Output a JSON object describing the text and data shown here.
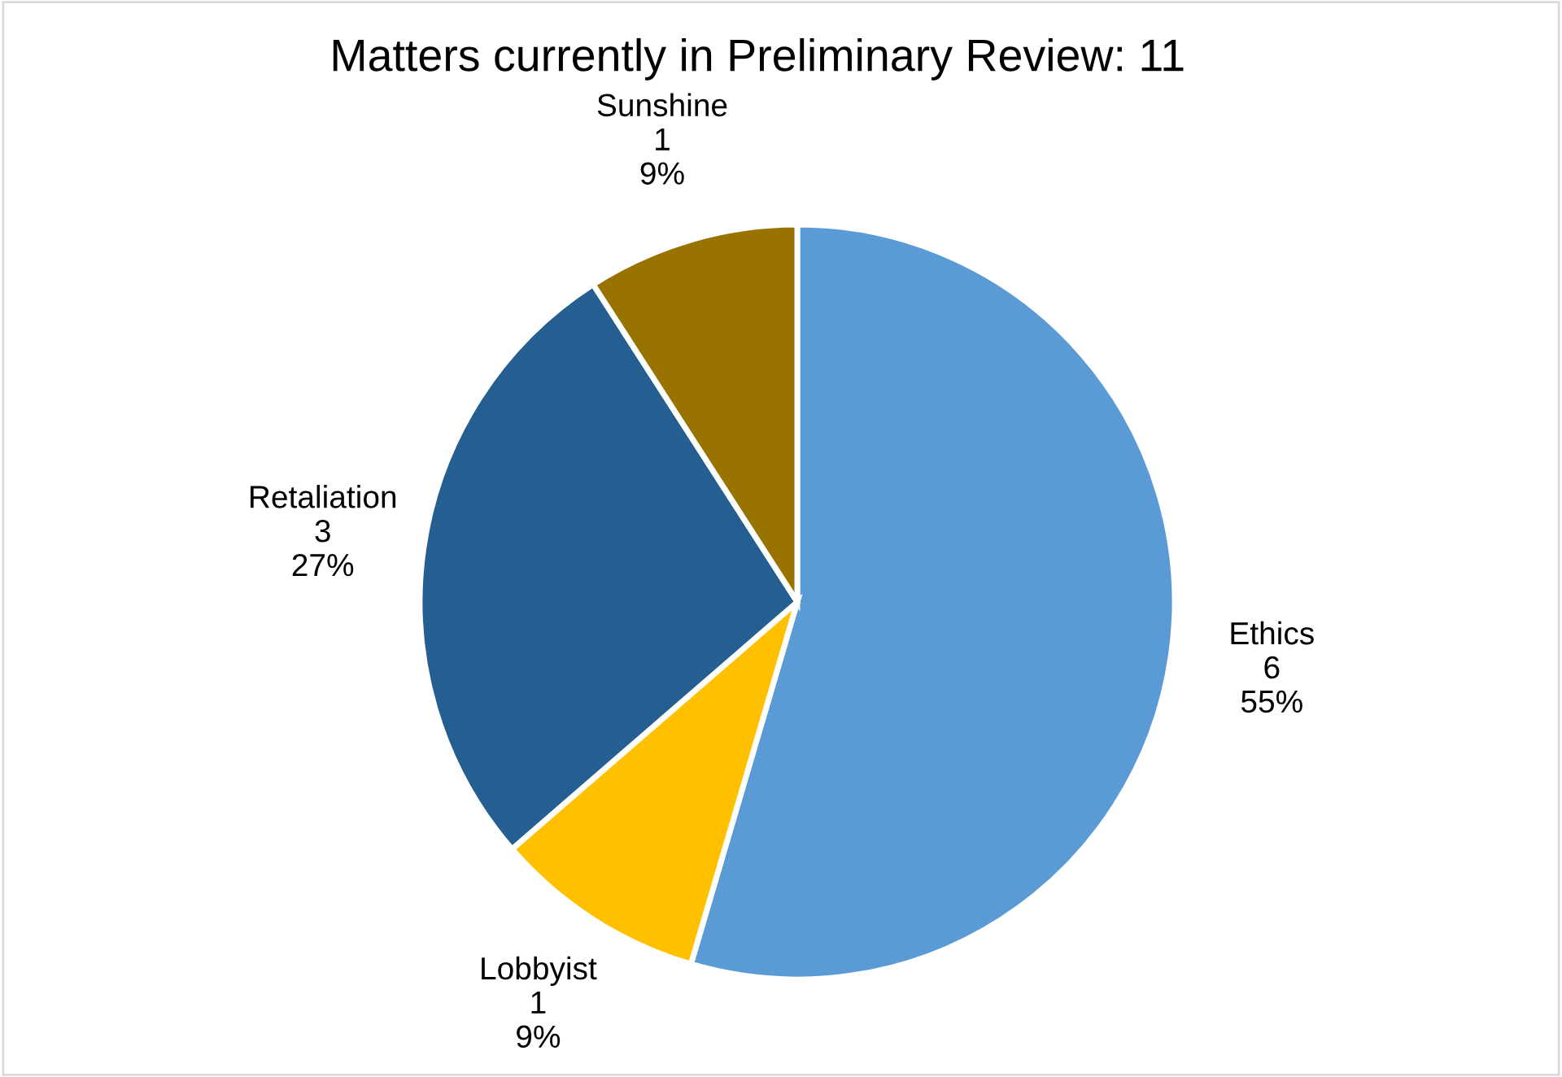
{
  "chart_data": {
    "type": "pie",
    "title": "Matters currently in Preliminary Review: 11",
    "categories": [
      "Ethics",
      "Lobbyist",
      "Retaliation",
      "Sunshine"
    ],
    "values": [
      6,
      1,
      3,
      1
    ],
    "colors": [
      "#5b9bd5",
      "#ffc000",
      "#255e91",
      "#997300"
    ],
    "value_labels": [
      "6\n55%",
      "1\n9%",
      "3\n27%",
      "1\n9%"
    ],
    "legend": false
  }
}
